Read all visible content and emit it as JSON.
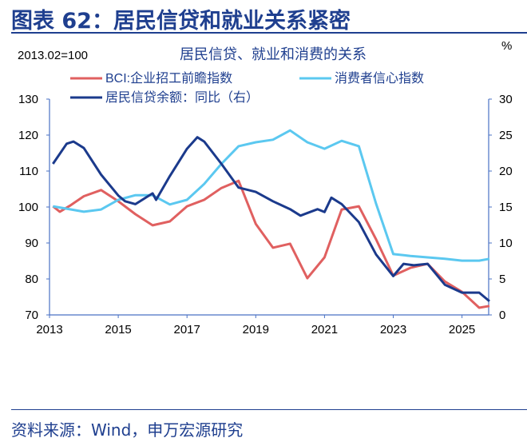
{
  "figure_title": "图表 62：居民信贷和就业关系紧密",
  "source": "资料来源：Wind，申万宏源研究",
  "chart_data": {
    "type": "line",
    "title": "居民信贷、就业和消费的关系",
    "left_axis_note": "2013.02=100",
    "right_axis_unit": "%",
    "x_ticks": [
      "2013",
      "2015",
      "2017",
      "2019",
      "2021",
      "2023",
      "2025"
    ],
    "xlim": [
      2013,
      2025.9
    ],
    "ylim_left": [
      70,
      130
    ],
    "yticks_left": [
      70,
      80,
      90,
      100,
      110,
      120,
      130
    ],
    "ylim_right": [
      0,
      30
    ],
    "yticks_right": [
      0,
      5,
      10,
      15,
      20,
      25,
      30
    ],
    "grid": false,
    "legend_placement": "top",
    "series": [
      {
        "name": "BCI:企业招工前瞻指数",
        "axis": "left",
        "color": "#e06060",
        "x": [
          2013.1,
          2013.3,
          2013.6,
          2014,
          2014.5,
          2015,
          2015.5,
          2016,
          2016.5,
          2017,
          2017.5,
          2018,
          2018.5,
          2019,
          2019.5,
          2020,
          2020.5,
          2021,
          2021.5,
          2022,
          2022.5,
          2023,
          2023.5,
          2024,
          2024.5,
          2025,
          2025.5,
          2025.8
        ],
        "y": [
          100.2,
          98.7,
          100.4,
          103,
          104.7,
          101.6,
          98,
          94.9,
          96,
          100.2,
          102,
          105.3,
          107.3,
          95.3,
          88.7,
          89.8,
          80.2,
          86,
          99.3,
          100.2,
          91,
          80.9,
          83.1,
          84.2,
          79.3,
          76.4,
          72,
          72.5
        ]
      },
      {
        "name": "消费者信心指数",
        "axis": "left",
        "color": "#5bc8f0",
        "x": [
          2013.1,
          2014,
          2014.5,
          2015,
          2015.5,
          2016,
          2016.5,
          2017,
          2017.5,
          2018,
          2018.5,
          2019,
          2019.5,
          2020,
          2020.5,
          2021,
          2021.5,
          2022,
          2022.5,
          2023,
          2023.5,
          2024,
          2024.5,
          2025,
          2025.5,
          2025.8
        ],
        "y": [
          100.2,
          98.7,
          99.3,
          102,
          103.3,
          103.3,
          100.7,
          102,
          106.4,
          112,
          116.9,
          118,
          118.7,
          121.3,
          118,
          116.2,
          118.4,
          116.9,
          100.9,
          86.9,
          86.4,
          86,
          85.6,
          85.1,
          85.1,
          85.6
        ]
      },
      {
        "name": "居民信贷余额：同比（右）",
        "axis": "right",
        "color": "#1b3a8c",
        "x": [
          2013.1,
          2013.5,
          2013.7,
          2014,
          2014.5,
          2015,
          2015.2,
          2015.5,
          2016,
          2016.1,
          2016.5,
          2017,
          2017.3,
          2017.5,
          2018,
          2018.5,
          2019,
          2019.5,
          2020,
          2020.3,
          2020.8,
          2021,
          2021.2,
          2021.5,
          2022,
          2022.5,
          2023,
          2023.3,
          2023.6,
          2024,
          2024.5,
          2025,
          2025.5,
          2025.8
        ],
        "y": [
          21,
          23.8,
          24.1,
          23.2,
          19.5,
          16.6,
          15.8,
          15.4,
          16.9,
          16,
          19.3,
          23.1,
          24.7,
          24.1,
          21,
          17.7,
          17.1,
          15.8,
          14.7,
          13.8,
          14.7,
          14.3,
          16.3,
          15.4,
          12.9,
          8.4,
          5.4,
          7.1,
          6.9,
          7.1,
          4.2,
          3.1,
          3.1,
          1.9
        ]
      }
    ]
  }
}
